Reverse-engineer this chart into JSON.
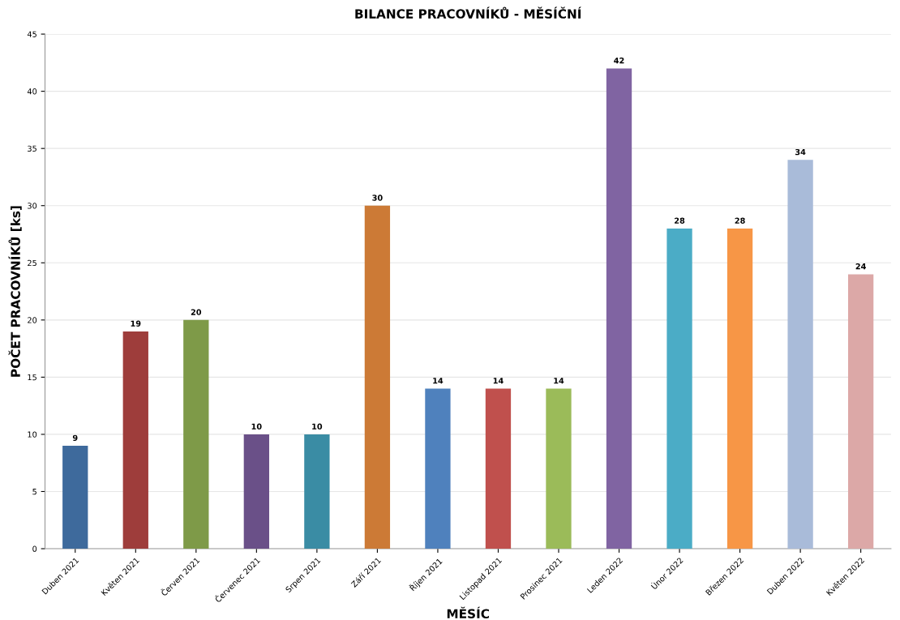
{
  "chart_data": {
    "type": "bar",
    "title": "BILANCE PRACOVNÍKŮ - MĚSÍČNÍ",
    "xlabel": "MĚSÍC",
    "ylabel": "POČET PRACOVNÍKŮ [ks]",
    "categories": [
      "Duben 2021",
      "Květen 2021",
      "Červen 2021",
      "Červenec 2021",
      "Srpen 2021",
      "Září 2021",
      "Říjen 2021",
      "Listopad 2021",
      "Prosinec 2021",
      "Leden 2022",
      "Únor 2022",
      "Březen 2022",
      "Duben 2022",
      "Květen 2022"
    ],
    "values": [
      9,
      19,
      20,
      10,
      10,
      30,
      14,
      14,
      14,
      42,
      28,
      28,
      34,
      24
    ],
    "colors": [
      "#3e6a9c",
      "#9e3d3b",
      "#7e9a48",
      "#6a5088",
      "#3a8ca4",
      "#cc7a36",
      "#4f81bd",
      "#c0504d",
      "#9bbb59",
      "#8064a2",
      "#4bacc6",
      "#f79646",
      "#a9bbd9",
      "#dca8a7"
    ],
    "ylim": [
      0,
      45
    ],
    "yticks": [
      0,
      5,
      10,
      15,
      20,
      25,
      30,
      35,
      40,
      45
    ],
    "grid": "y",
    "data_labels": true
  }
}
